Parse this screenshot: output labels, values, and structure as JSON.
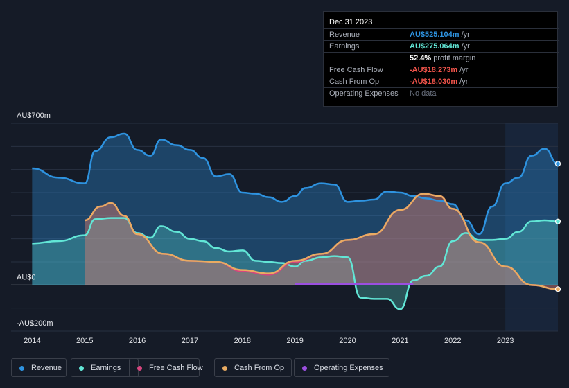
{
  "tooltip": {
    "date": "Dec 31 2023",
    "rows": [
      {
        "label": "Revenue",
        "value": "AU$525.104m",
        "unit": " /yr",
        "color": "#2e93e0"
      },
      {
        "label": "Earnings",
        "value": "AU$275.064m",
        "unit": " /yr",
        "color": "#62e6d6"
      },
      {
        "label": "",
        "value": "52.4%",
        "unit": " profit margin",
        "color": "#ffffff"
      },
      {
        "label": "Free Cash Flow",
        "value": "-AU$18.273m",
        "unit": " /yr",
        "color": "#f2544b"
      },
      {
        "label": "Cash From Op",
        "value": "-AU$18.030m",
        "unit": " /yr",
        "color": "#f2544b"
      },
      {
        "label": "Operating Expenses",
        "value": "No data",
        "unit": "",
        "color": "#6b7280"
      }
    ]
  },
  "legend": [
    {
      "label": "Revenue",
      "color": "#2e93e0"
    },
    {
      "label": "Earnings",
      "color": "#62e6d6"
    },
    {
      "label": "Free Cash Flow",
      "color": "#d6457e"
    },
    {
      "label": "Cash From Op",
      "color": "#e9ab62"
    },
    {
      "label": "Operating Expenses",
      "color": "#9b4fe0"
    }
  ],
  "chart_data": {
    "type": "area",
    "title": "",
    "y_tick_labels": [
      "AU$700m",
      "AU$0",
      "-AU$200m"
    ],
    "y_ticks": [
      700,
      0,
      -200
    ],
    "ylim": [
      -200,
      700
    ],
    "x_tick_labels": [
      "2014",
      "2015",
      "2016",
      "2017",
      "2018",
      "2019",
      "2020",
      "2021",
      "2022",
      "2023"
    ],
    "x_ticks": [
      2014,
      2015,
      2016,
      2017,
      2018,
      2019,
      2020,
      2021,
      2022,
      2023
    ],
    "xlim": [
      2013.6,
      2024.0
    ],
    "highlight_start": 2023.0,
    "series": [
      {
        "name": "Revenue",
        "color": "#2e93e0",
        "x": [
          2014.0,
          2014.5,
          2015.0,
          2015.2,
          2015.5,
          2015.75,
          2016.0,
          2016.25,
          2016.45,
          2016.75,
          2017.0,
          2017.25,
          2017.5,
          2017.75,
          2018.0,
          2018.25,
          2018.5,
          2018.75,
          2019.0,
          2019.2,
          2019.5,
          2019.75,
          2020.0,
          2020.25,
          2020.5,
          2020.75,
          2021.0,
          2021.25,
          2021.5,
          2021.75,
          2022.0,
          2022.25,
          2022.5,
          2022.75,
          2023.0,
          2023.25,
          2023.5,
          2023.75,
          2024.0
        ],
        "values": [
          505,
          465,
          440,
          580,
          640,
          655,
          585,
          560,
          630,
          605,
          585,
          550,
          470,
          480,
          400,
          395,
          380,
          360,
          385,
          420,
          440,
          435,
          360,
          365,
          370,
          405,
          400,
          385,
          375,
          365,
          350,
          280,
          220,
          340,
          440,
          465,
          560,
          590,
          525
        ]
      },
      {
        "name": "Earnings",
        "color": "#62e6d6",
        "x": [
          2014.0,
          2014.5,
          2015.0,
          2015.2,
          2015.5,
          2015.75,
          2016.0,
          2016.25,
          2016.45,
          2016.75,
          2017.0,
          2017.25,
          2017.5,
          2017.75,
          2018.0,
          2018.25,
          2018.5,
          2018.75,
          2019.0,
          2019.2,
          2019.5,
          2019.75,
          2020.0,
          2020.25,
          2020.5,
          2020.75,
          2021.0,
          2021.25,
          2021.5,
          2021.75,
          2022.0,
          2022.25,
          2022.5,
          2022.75,
          2023.0,
          2023.25,
          2023.5,
          2023.75,
          2024.0
        ],
        "values": [
          180,
          190,
          215,
          285,
          290,
          290,
          225,
          205,
          255,
          230,
          200,
          190,
          160,
          145,
          150,
          105,
          100,
          95,
          80,
          105,
          120,
          125,
          120,
          -55,
          -60,
          -60,
          -105,
          20,
          40,
          80,
          190,
          225,
          195,
          195,
          200,
          230,
          275,
          280,
          275
        ]
      },
      {
        "name": "Free Cash Flow",
        "color": "#d6457e",
        "x": [
          2015.0,
          2015.3,
          2015.5,
          2015.75,
          2016.0,
          2016.5,
          2017.0,
          2017.5,
          2018.0,
          2018.5,
          2019.0,
          2019.5,
          2020.0,
          2020.5,
          2021.0,
          2021.45,
          2021.75,
          2022.0,
          2022.5,
          2023.0,
          2023.5,
          2024.0
        ],
        "values": [
          280,
          340,
          355,
          300,
          220,
          135,
          105,
          100,
          60,
          45,
          100,
          135,
          195,
          220,
          325,
          395,
          385,
          330,
          185,
          80,
          0,
          -18
        ]
      },
      {
        "name": "Cash From Op",
        "color": "#e9ab62",
        "x": [
          2015.0,
          2015.3,
          2015.5,
          2015.75,
          2016.0,
          2016.5,
          2017.0,
          2017.5,
          2018.0,
          2018.5,
          2019.0,
          2019.5,
          2020.0,
          2020.5,
          2021.0,
          2021.45,
          2021.75,
          2022.0,
          2022.5,
          2023.0,
          2023.5,
          2024.0
        ],
        "values": [
          280,
          340,
          355,
          300,
          220,
          135,
          105,
          100,
          65,
          50,
          105,
          135,
          195,
          220,
          325,
          395,
          385,
          330,
          185,
          80,
          0,
          -18
        ]
      },
      {
        "name": "Operating Expenses",
        "color": "#9b4fe0",
        "x": [
          2019.0,
          2021.25
        ],
        "values": [
          5,
          5
        ]
      }
    ]
  }
}
